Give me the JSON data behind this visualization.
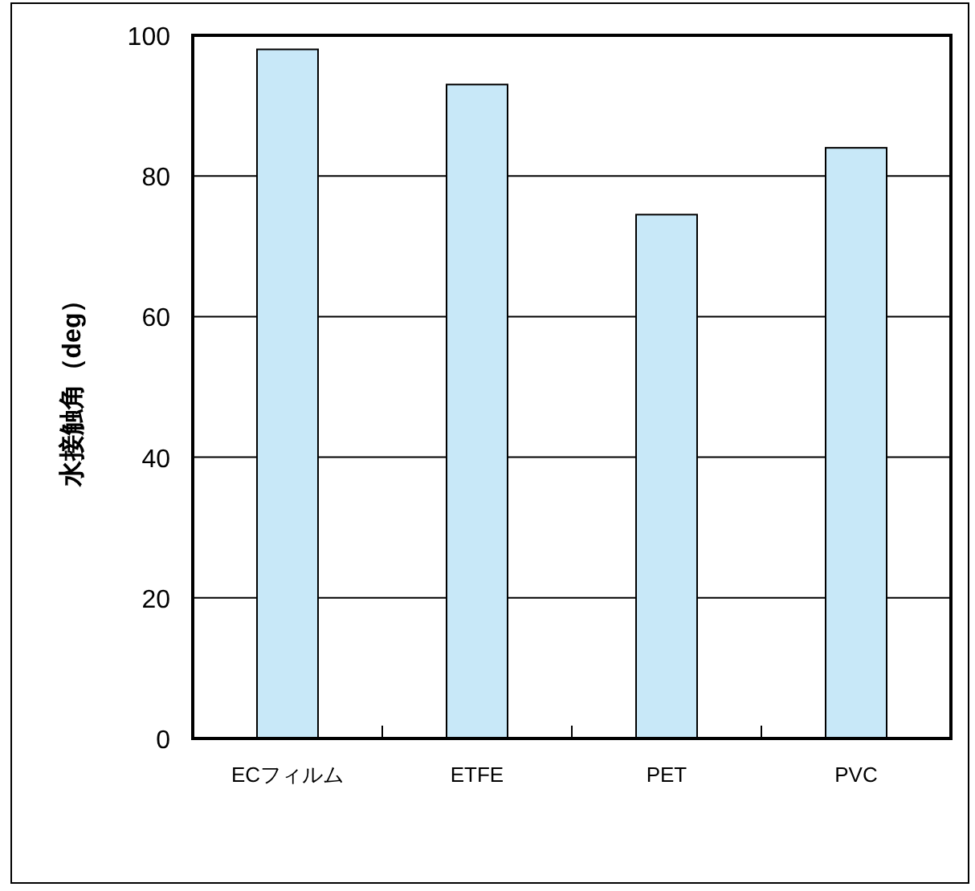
{
  "chart_data": {
    "type": "bar",
    "ylabel": "水接触角（deg）",
    "categories": [
      "ECフィルム",
      "ETFE",
      "PET",
      "PVC"
    ],
    "values": [
      98,
      93,
      74.5,
      84
    ],
    "color": "#c8e8f8",
    "ylim": [
      0,
      100
    ],
    "yticks": [
      0,
      20,
      40,
      60,
      80,
      100
    ],
    "grid": "y"
  }
}
